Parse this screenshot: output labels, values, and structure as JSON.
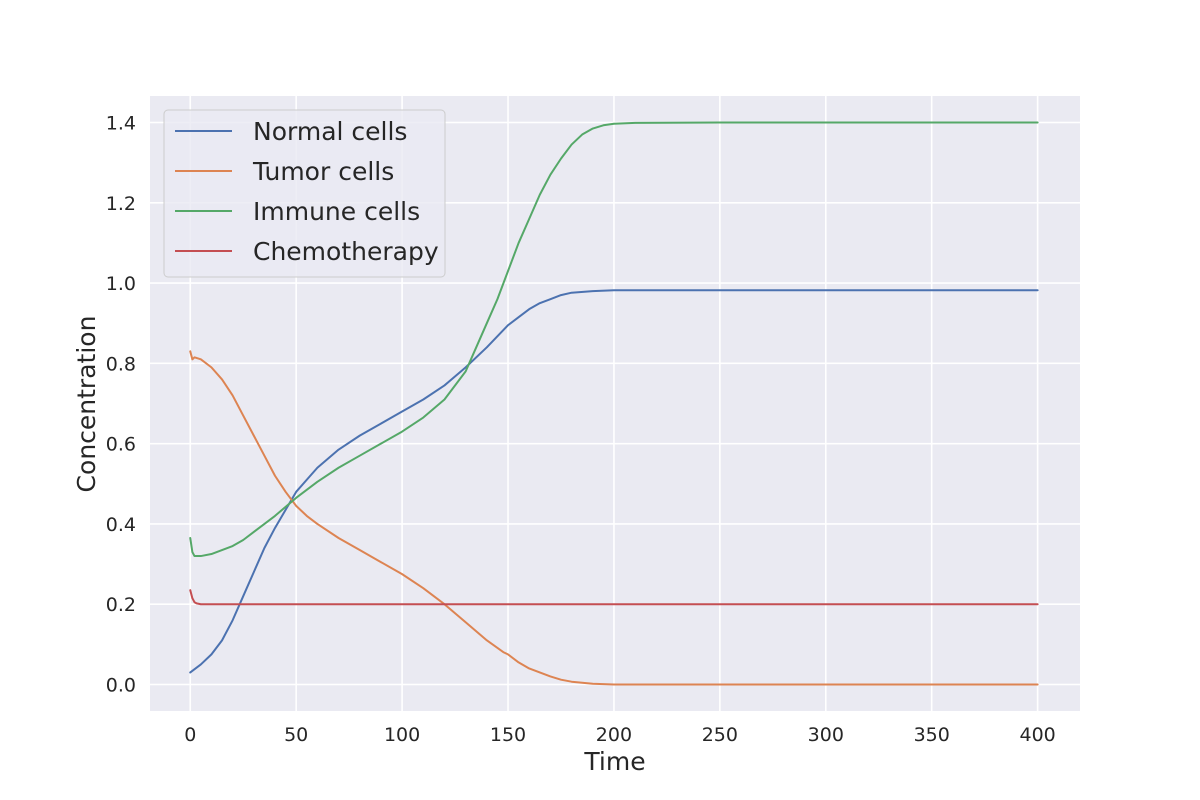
{
  "chart_data": {
    "type": "line",
    "xlabel": "Time",
    "ylabel": "Concentration",
    "xlim": [
      -19,
      420
    ],
    "ylim": [
      -0.066,
      1.466
    ],
    "xticks": [
      0,
      50,
      100,
      150,
      200,
      250,
      300,
      350,
      400
    ],
    "yticks": [
      0.0,
      0.2,
      0.4,
      0.6,
      0.8,
      1.0,
      1.2,
      1.4
    ],
    "xtick_labels": [
      "0",
      "50",
      "100",
      "150",
      "200",
      "250",
      "300",
      "350",
      "400"
    ],
    "ytick_labels": [
      "0.0",
      "0.2",
      "0.4",
      "0.6",
      "0.8",
      "1.0",
      "1.2",
      "1.4"
    ],
    "grid": true,
    "legend_position": "upper-left",
    "background": "#eaeaf2",
    "series": [
      {
        "name": "Normal cells",
        "color": "#4c72b0",
        "x": [
          0,
          5,
          10,
          15,
          20,
          25,
          30,
          35,
          40,
          45,
          50,
          55,
          60,
          70,
          80,
          90,
          100,
          110,
          120,
          130,
          140,
          150,
          155,
          160,
          165,
          170,
          175,
          180,
          190,
          200,
          210,
          250,
          300,
          350,
          400
        ],
        "y": [
          0.03,
          0.05,
          0.075,
          0.11,
          0.16,
          0.22,
          0.28,
          0.34,
          0.39,
          0.435,
          0.48,
          0.51,
          0.54,
          0.585,
          0.62,
          0.65,
          0.68,
          0.71,
          0.745,
          0.79,
          0.84,
          0.895,
          0.915,
          0.935,
          0.95,
          0.96,
          0.97,
          0.976,
          0.98,
          0.982,
          0.982,
          0.982,
          0.982,
          0.982,
          0.982
        ]
      },
      {
        "name": "Tumor cells",
        "color": "#dd8452",
        "x": [
          0,
          1,
          2,
          5,
          10,
          15,
          20,
          25,
          30,
          35,
          40,
          45,
          50,
          55,
          60,
          70,
          80,
          90,
          100,
          110,
          120,
          130,
          140,
          148,
          150,
          155,
          160,
          165,
          170,
          175,
          180,
          190,
          200,
          250,
          300,
          350,
          400
        ],
        "y": [
          0.83,
          0.81,
          0.815,
          0.81,
          0.79,
          0.76,
          0.72,
          0.67,
          0.62,
          0.57,
          0.52,
          0.48,
          0.445,
          0.42,
          0.4,
          0.365,
          0.335,
          0.305,
          0.275,
          0.24,
          0.2,
          0.155,
          0.11,
          0.08,
          0.075,
          0.055,
          0.04,
          0.03,
          0.02,
          0.012,
          0.007,
          0.002,
          0.0,
          0.0,
          0.0,
          0.0,
          0.0
        ]
      },
      {
        "name": "Immune cells",
        "color": "#55a868",
        "x": [
          0,
          1,
          2,
          5,
          10,
          15,
          20,
          25,
          30,
          35,
          40,
          50,
          60,
          70,
          80,
          90,
          100,
          110,
          120,
          130,
          135,
          140,
          145,
          150,
          155,
          160,
          165,
          170,
          175,
          180,
          185,
          190,
          195,
          200,
          210,
          250,
          300,
          350,
          400
        ],
        "y": [
          0.365,
          0.33,
          0.32,
          0.32,
          0.325,
          0.335,
          0.345,
          0.36,
          0.38,
          0.4,
          0.42,
          0.465,
          0.505,
          0.54,
          0.57,
          0.6,
          0.63,
          0.665,
          0.71,
          0.78,
          0.84,
          0.9,
          0.96,
          1.03,
          1.1,
          1.16,
          1.22,
          1.27,
          1.31,
          1.345,
          1.37,
          1.385,
          1.393,
          1.397,
          1.399,
          1.4,
          1.4,
          1.4,
          1.4
        ]
      },
      {
        "name": "Chemotherapy",
        "color": "#c44e52",
        "x": [
          0,
          1,
          2,
          3,
          5,
          10,
          50,
          100,
          200,
          300,
          400
        ],
        "y": [
          0.235,
          0.215,
          0.205,
          0.202,
          0.2,
          0.2,
          0.2,
          0.2,
          0.2,
          0.2,
          0.2
        ]
      }
    ]
  }
}
